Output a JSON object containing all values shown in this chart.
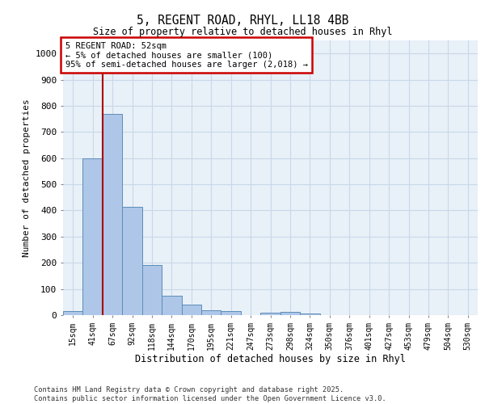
{
  "title_line1": "5, REGENT ROAD, RHYL, LL18 4BB",
  "title_line2": "Size of property relative to detached houses in Rhyl",
  "xlabel": "Distribution of detached houses by size in Rhyl",
  "ylabel": "Number of detached properties",
  "categories": [
    "15sqm",
    "41sqm",
    "67sqm",
    "92sqm",
    "118sqm",
    "144sqm",
    "170sqm",
    "195sqm",
    "221sqm",
    "247sqm",
    "273sqm",
    "298sqm",
    "324sqm",
    "350sqm",
    "376sqm",
    "401sqm",
    "427sqm",
    "453sqm",
    "479sqm",
    "504sqm",
    "530sqm"
  ],
  "values": [
    15,
    600,
    770,
    415,
    190,
    75,
    40,
    20,
    15,
    0,
    10,
    12,
    5,
    0,
    0,
    0,
    0,
    0,
    0,
    0,
    0
  ],
  "bar_color": "#aec6e8",
  "bar_edge_color": "#5b8db8",
  "ylim": [
    0,
    1050
  ],
  "yticks": [
    0,
    100,
    200,
    300,
    400,
    500,
    600,
    700,
    800,
    900,
    1000
  ],
  "vline_color": "#aa0000",
  "annotation_text": "5 REGENT ROAD: 52sqm\n← 5% of detached houses are smaller (100)\n95% of semi-detached houses are larger (2,018) →",
  "annotation_box_color": "#cc0000",
  "grid_color": "#c8d8e8",
  "background_color": "#e8f0f8",
  "footer_line1": "Contains HM Land Registry data © Crown copyright and database right 2025.",
  "footer_line2": "Contains public sector information licensed under the Open Government Licence v3.0."
}
